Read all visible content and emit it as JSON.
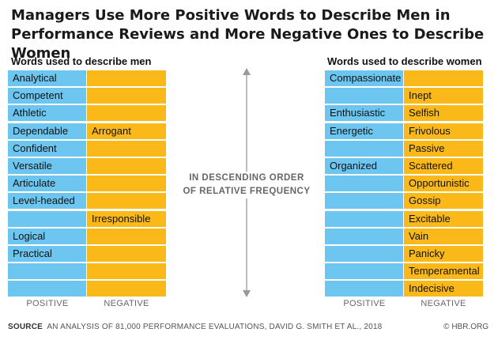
{
  "chart_data": {
    "type": "table",
    "title": "Managers Use More Positive Words to Describe Men in Performance Reviews and More Negative Ones to Describe Women",
    "center_label": [
      "IN DESCENDING ORDER",
      "OF RELATIVE FREQUENCY"
    ],
    "column_headers": [
      "POSITIVE",
      "NEGATIVE"
    ],
    "tables": [
      {
        "name": "Words used to describe men",
        "rows": [
          [
            "Analytical",
            ""
          ],
          [
            "Competent",
            ""
          ],
          [
            "Athletic",
            ""
          ],
          [
            "Dependable",
            "Arrogant"
          ],
          [
            "Confident",
            ""
          ],
          [
            "Versatile",
            ""
          ],
          [
            "Articulate",
            ""
          ],
          [
            "Level-headed",
            ""
          ],
          [
            "",
            "Irresponsible"
          ],
          [
            "Logical",
            ""
          ],
          [
            "Practical",
            ""
          ],
          [
            "",
            ""
          ],
          [
            "",
            ""
          ]
        ]
      },
      {
        "name": "Words used to describe women",
        "rows": [
          [
            "Compassionate",
            ""
          ],
          [
            "",
            "Inept"
          ],
          [
            "Enthusiastic",
            "Selfish"
          ],
          [
            "Energetic",
            "Frivolous"
          ],
          [
            "",
            "Passive"
          ],
          [
            "Organized",
            "Scattered"
          ],
          [
            "",
            "Opportunistic"
          ],
          [
            "",
            "Gossip"
          ],
          [
            "",
            "Excitable"
          ],
          [
            "",
            "Vain"
          ],
          [
            "",
            "Panicky"
          ],
          [
            "",
            "Temperamental"
          ],
          [
            "",
            "Indecisive"
          ]
        ]
      }
    ]
  },
  "source": {
    "label": "SOURCE",
    "text": "AN ANALYSIS OF 81,000 PERFORMANCE EVALUATIONS, DAVID G. SMITH ET AL., 2018"
  },
  "credit": "© HBR.ORG",
  "colors": {
    "positive": "#6cc6f0",
    "negative": "#fbb919",
    "text_muted": "#666666"
  }
}
